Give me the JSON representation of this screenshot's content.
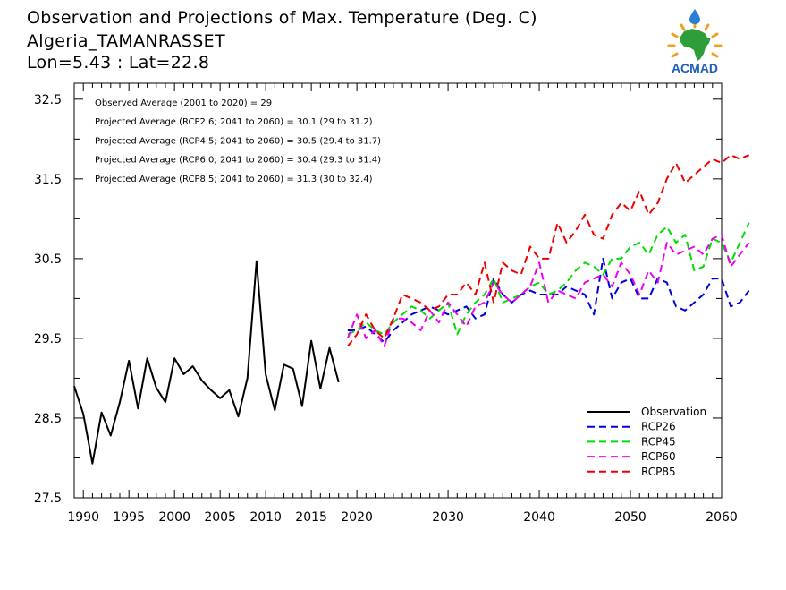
{
  "title": {
    "line1": "Observation and Projections of Max. Temperature (Deg. C)",
    "line2": "Algeria_TAMANRASSET",
    "line3": "Lon=5.43 : Lat=22.8"
  },
  "logo": {
    "text": "ACMAD",
    "colors": {
      "africa": "#2e9e3a",
      "drop": "#2a7fd4",
      "rays": "#f0a020",
      "text": "#1d5fb5"
    }
  },
  "notes": [
    "Observed Average (2001 to 2020) = 29",
    "Projected Average (RCP2.6; 2041 to 2060) = 30.1 (29 to 31.2)",
    "Projected Average (RCP4.5; 2041 to 2060) = 30.5 (29.4 to 31.7)",
    "Projected Average (RCP6.0; 2041 to 2060) = 30.4 (29.3 to 31.4)",
    "Projected Average (RCP8.5; 2041 to 2060) = 31.3 (30 to 32.4)"
  ],
  "chart_data": {
    "type": "line",
    "xlim": [
      1989,
      2060
    ],
    "ylim": [
      27.5,
      32.7
    ],
    "xticks": [
      {
        "v": 1990,
        "label": "1990"
      },
      {
        "v": 1995,
        "label": "1995"
      },
      {
        "v": 2000,
        "label": "2000"
      },
      {
        "v": 2005,
        "label": "2005"
      },
      {
        "v": 2010,
        "label": "2010"
      },
      {
        "v": 2015,
        "label": "2015"
      },
      {
        "v": 2020,
        "label": "2020"
      },
      {
        "v": 2030,
        "label": "2030"
      },
      {
        "v": 2040,
        "label": "2040"
      },
      {
        "v": 2050,
        "label": "2050"
      },
      {
        "v": 2060,
        "label": "2060"
      }
    ],
    "yticks": [
      {
        "v": 27.5,
        "label": "27.5"
      },
      {
        "v": 28.5,
        "label": "28.5"
      },
      {
        "v": 29.5,
        "label": "29.5"
      },
      {
        "v": 30.5,
        "label": "30.5"
      },
      {
        "v": 31.5,
        "label": "31.5"
      },
      {
        "v": 32.5,
        "label": "32.5"
      }
    ],
    "legend_position": "bottom-right",
    "series": [
      {
        "name": "Observation",
        "color": "#000000",
        "dashed": false,
        "x_start": 1989,
        "values": [
          28.9,
          28.55,
          27.93,
          28.57,
          28.28,
          28.7,
          29.22,
          28.62,
          29.25,
          28.88,
          28.7,
          29.25,
          29.05,
          29.15,
          28.97,
          28.85,
          28.75,
          28.85,
          28.52,
          29.0,
          30.47,
          29.05,
          28.6,
          29.17,
          29.12,
          28.65,
          29.47,
          28.87,
          29.38,
          28.95
        ]
      },
      {
        "name": "RCP26",
        "color": "#0000dd",
        "dashed": true,
        "x_start": 2019,
        "values": [
          29.6,
          29.6,
          29.65,
          29.55,
          29.45,
          29.6,
          29.7,
          29.8,
          29.85,
          29.9,
          29.85,
          29.8,
          29.85,
          29.9,
          29.75,
          29.8,
          30.25,
          30.05,
          29.95,
          30.05,
          30.1,
          30.05,
          30.05,
          30.05,
          30.15,
          30.1,
          30.05,
          29.8,
          30.5,
          30.0,
          30.2,
          30.25,
          30.0,
          30.0,
          30.25,
          30.2,
          29.9,
          29.85,
          29.95,
          30.05,
          30.25,
          30.25,
          29.9,
          29.95,
          30.1
        ]
      },
      {
        "name": "RCP45",
        "color": "#00dd00",
        "dashed": true,
        "x_start": 2019,
        "values": [
          29.55,
          29.6,
          29.7,
          29.6,
          29.55,
          29.7,
          29.8,
          29.9,
          29.85,
          29.75,
          29.85,
          29.95,
          29.55,
          29.8,
          29.95,
          30.05,
          30.25,
          29.95,
          30.0,
          30.05,
          30.15,
          30.2,
          30.05,
          30.1,
          30.2,
          30.35,
          30.45,
          30.4,
          30.3,
          30.5,
          30.5,
          30.65,
          30.7,
          30.55,
          30.8,
          30.9,
          30.7,
          30.8,
          30.35,
          30.4,
          30.75,
          30.7,
          30.45,
          30.7,
          30.95
        ]
      },
      {
        "name": "RCP60",
        "color": "#ee00ee",
        "dashed": true,
        "x_start": 2019,
        "values": [
          29.5,
          29.8,
          29.5,
          29.6,
          29.4,
          29.75,
          29.75,
          29.7,
          29.6,
          29.85,
          29.7,
          29.95,
          29.8,
          29.65,
          29.9,
          29.95,
          30.2,
          30.05,
          29.95,
          30.05,
          30.15,
          30.45,
          29.95,
          30.1,
          30.05,
          30.0,
          30.2,
          30.25,
          30.3,
          30.15,
          30.45,
          30.3,
          30.05,
          30.35,
          30.2,
          30.7,
          30.55,
          30.6,
          30.65,
          30.55,
          30.75,
          30.8,
          30.4,
          30.55,
          30.7
        ]
      },
      {
        "name": "RCP85",
        "color": "#ee0000",
        "dashed": true,
        "x_start": 2019,
        "values": [
          29.4,
          29.55,
          29.8,
          29.6,
          29.5,
          29.75,
          30.05,
          30.0,
          29.95,
          29.85,
          29.9,
          30.05,
          30.05,
          30.2,
          30.05,
          30.45,
          29.95,
          30.45,
          30.35,
          30.3,
          30.65,
          30.5,
          30.5,
          30.95,
          30.7,
          30.85,
          31.05,
          30.8,
          30.75,
          31.05,
          31.2,
          31.1,
          31.35,
          31.05,
          31.2,
          31.5,
          31.7,
          31.45,
          31.55,
          31.65,
          31.75,
          31.7,
          31.8,
          31.75,
          31.8
        ]
      }
    ]
  }
}
